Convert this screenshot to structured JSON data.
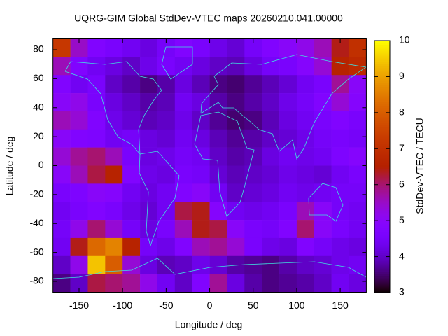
{
  "chart_data": {
    "type": "heatmap",
    "title": "UQRG-GIM Global StdDev-VTEC maps 20260210.041.00000",
    "x_label": "Longitude / deg",
    "y_label": "Latitude / deg",
    "colorbar_label": "StdDev-VTEC / TECU",
    "colormap": "gnuplot",
    "xbins": [
      -180,
      -160,
      -140,
      -120,
      -100,
      -80,
      -60,
      -40,
      -20,
      0,
      20,
      40,
      60,
      80,
      100,
      120,
      140,
      160,
      180
    ],
    "ybins": [
      87.5,
      75,
      62.5,
      50,
      37.5,
      25,
      12.5,
      0,
      -12.5,
      -25,
      -37.5,
      -50,
      -62.5,
      -75,
      -87.5
    ],
    "z": [
      [
        7.2,
        5.5,
        4.8,
        4.6,
        4.4,
        4.2,
        4.5,
        4.8,
        4.6,
        4.3,
        4.1,
        4.5,
        4.8,
        5.0,
        5.2,
        5.6,
        6.4,
        7.0
      ],
      [
        5.6,
        4.8,
        4.4,
        4.2,
        4.0,
        4.3,
        4.6,
        4.4,
        4.2,
        4.0,
        3.9,
        4.2,
        4.5,
        4.6,
        4.9,
        5.4,
        6.6,
        6.8
      ],
      [
        4.8,
        4.4,
        4.6,
        4.0,
        3.8,
        3.6,
        3.8,
        4.2,
        3.9,
        3.6,
        3.5,
        3.7,
        3.9,
        4.1,
        4.4,
        4.6,
        5.8,
        5.0
      ],
      [
        5.0,
        5.2,
        4.6,
        4.2,
        4.0,
        3.8,
        3.9,
        4.4,
        4.2,
        3.8,
        3.6,
        3.8,
        4.0,
        4.3,
        4.5,
        4.8,
        5.4,
        4.9
      ],
      [
        5.6,
        5.4,
        4.8,
        4.3,
        4.1,
        3.9,
        4.0,
        4.3,
        4.0,
        3.7,
        3.5,
        3.6,
        3.9,
        4.2,
        4.4,
        4.6,
        4.8,
        4.6
      ],
      [
        5.0,
        4.8,
        4.7,
        4.4,
        4.5,
        4.2,
        4.1,
        4.4,
        4.2,
        3.9,
        3.7,
        3.8,
        4.0,
        4.1,
        4.3,
        4.5,
        4.6,
        4.5
      ],
      [
        5.4,
        5.8,
        6.0,
        5.6,
        4.6,
        4.2,
        4.3,
        4.5,
        4.4,
        4.0,
        3.8,
        3.9,
        4.2,
        4.4,
        4.3,
        4.4,
        4.7,
        4.9
      ],
      [
        5.0,
        5.6,
        6.2,
        6.6,
        4.8,
        4.3,
        4.2,
        4.6,
        4.5,
        4.1,
        3.9,
        4.0,
        4.1,
        4.3,
        4.2,
        4.1,
        4.4,
        4.6
      ],
      [
        4.6,
        4.7,
        5.0,
        4.9,
        4.4,
        4.2,
        4.4,
        4.8,
        5.0,
        4.4,
        4.0,
        4.1,
        4.2,
        4.4,
        4.3,
        4.4,
        4.5,
        4.5
      ],
      [
        4.4,
        4.6,
        4.8,
        4.6,
        4.3,
        4.1,
        4.4,
        6.2,
        6.4,
        4.9,
        4.4,
        4.3,
        4.4,
        4.6,
        5.6,
        5.0,
        4.5,
        4.4
      ],
      [
        4.5,
        5.2,
        6.0,
        5.4,
        4.5,
        4.2,
        4.6,
        5.6,
        6.4,
        6.2,
        5.0,
        4.6,
        4.5,
        4.8,
        6.0,
        5.0,
        4.6,
        4.4
      ],
      [
        4.4,
        6.4,
        8.2,
        8.6,
        6.6,
        4.5,
        4.3,
        4.8,
        5.6,
        5.8,
        5.4,
        4.6,
        4.3,
        4.2,
        4.8,
        4.5,
        4.3,
        4.2
      ],
      [
        4.0,
        5.2,
        9.4,
        8.0,
        5.4,
        4.2,
        3.9,
        4.0,
        4.3,
        4.1,
        3.8,
        3.7,
        3.6,
        3.8,
        4.0,
        4.1,
        4.3,
        4.4
      ],
      [
        3.6,
        4.0,
        6.2,
        6.0,
        5.8,
        5.2,
        4.4,
        4.0,
        4.8,
        5.8,
        4.2,
        3.8,
        3.6,
        3.7,
        3.8,
        4.0,
        4.4,
        4.2
      ]
    ],
    "xlim": [
      -180,
      180
    ],
    "ylim": [
      -87.5,
      87.5
    ],
    "xticks": [
      -150,
      -100,
      -50,
      0,
      50,
      100,
      150
    ],
    "yticks": [
      -80,
      -60,
      -40,
      -20,
      0,
      20,
      40,
      60,
      80
    ],
    "zlim": [
      3,
      10
    ],
    "zticks": [
      3,
      4,
      5,
      6,
      7,
      8,
      9,
      10
    ]
  }
}
